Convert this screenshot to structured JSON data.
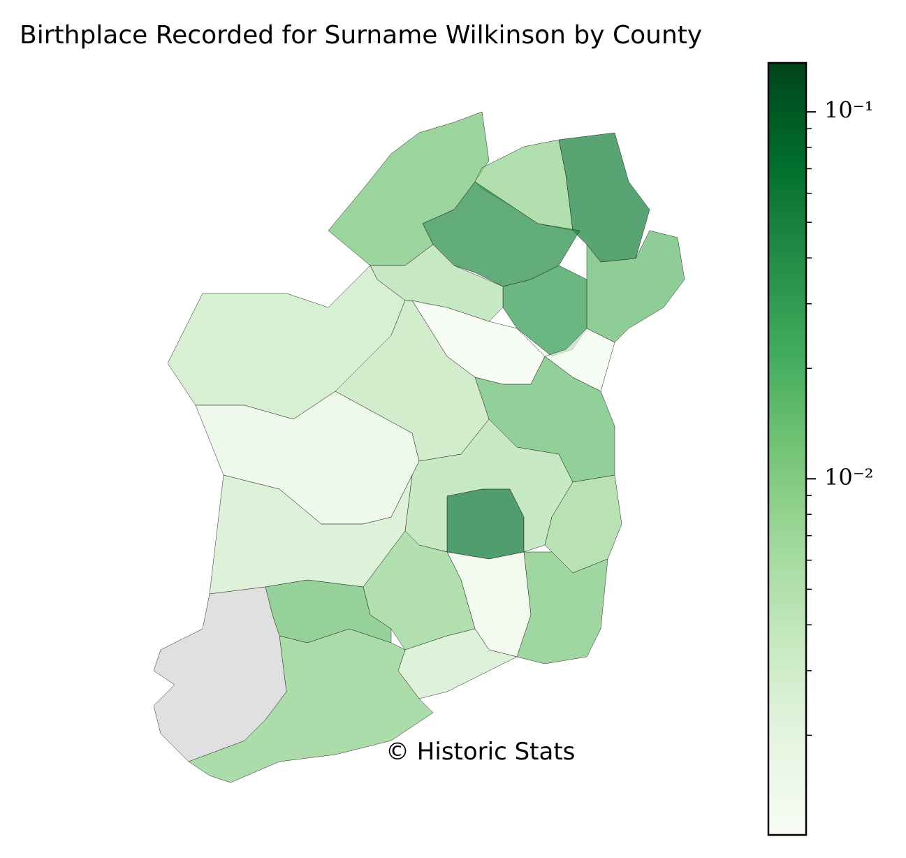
{
  "chart_data": {
    "type": "choropleth",
    "title": "Birthplace Recorded for Surname Wilkinson by County",
    "annotation": "© Historic Stats",
    "values": [
      0.012,
      0.008,
      0.05,
      0.04,
      0.015,
      0.03,
      0.005,
      0.0012,
      0.0013,
      0.014,
      0.0035,
      0.004,
      0.0018,
      0.003,
      0.06,
      0.005,
      0.007,
      0.011,
      0.0015,
      0.008,
      0.003,
      0.013,
      0.009,
      null
    ],
    "colormap": [
      "#f7fcf5",
      "#e5f5e0",
      "#c7e9c0",
      "#a1d99b",
      "#74c476",
      "#41ab5d",
      "#238b45",
      "#006d2c",
      "#00441b"
    ],
    "missing_color": "#e0e0e0",
    "log_scale": true,
    "ylim": [
      0.00107,
      0.136
    ],
    "yticks": [
      {
        "value": 0.01,
        "label": "10⁻²"
      },
      {
        "value": 0.1,
        "label": "10⁻¹"
      }
    ]
  }
}
